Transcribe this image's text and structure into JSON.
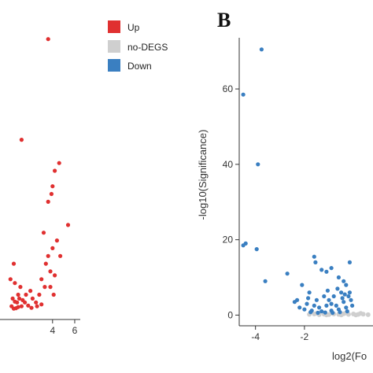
{
  "colors": {
    "up": "#e03030",
    "nodeg": "#cfcfcf",
    "down": "#3a7fc1",
    "axis": "#333333"
  },
  "legend": {
    "items": [
      {
        "label": "Up",
        "color": "#e03030"
      },
      {
        "label": "no-DEGS",
        "color": "#cfcfcf"
      },
      {
        "label": "Down",
        "color": "#3a7fc1"
      }
    ]
  },
  "panel_b": {
    "letter": "B"
  },
  "chart_data": [
    {
      "type": "scatter",
      "title": "",
      "xlabel": "",
      "ylabel": "",
      "xlim": [
        -0.6,
        6.5
      ],
      "ylim": [
        -2,
        74
      ],
      "xticks": [
        4,
        6
      ],
      "series": [
        {
          "name": "Up",
          "color": "#e03030",
          "points": [
            [
              3.6,
              70
            ],
            [
              1.2,
              44
            ],
            [
              4.6,
              38
            ],
            [
              4.2,
              36
            ],
            [
              4.0,
              32
            ],
            [
              3.9,
              30
            ],
            [
              3.6,
              28
            ],
            [
              5.4,
              22
            ],
            [
              3.2,
              20
            ],
            [
              4.4,
              18
            ],
            [
              4.0,
              16
            ],
            [
              3.6,
              14
            ],
            [
              4.7,
              14
            ],
            [
              3.4,
              12
            ],
            [
              3.8,
              10
            ],
            [
              4.2,
              9
            ],
            [
              0.5,
              12
            ],
            [
              3.0,
              8
            ],
            [
              3.3,
              6
            ],
            [
              3.8,
              6
            ],
            [
              4.1,
              4
            ],
            [
              2.8,
              4
            ],
            [
              1.1,
              6
            ],
            [
              0.9,
              4
            ],
            [
              0.8,
              2
            ],
            [
              1.5,
              2
            ],
            [
              2.2,
              3
            ],
            [
              2.5,
              2
            ],
            [
              3.0,
              1.5
            ],
            [
              1.2,
              1
            ],
            [
              0.3,
              1
            ],
            [
              0.7,
              0.5
            ],
            [
              0.4,
              3
            ],
            [
              0.6,
              7
            ],
            [
              2.0,
              5
            ],
            [
              2.6,
              1
            ],
            [
              0.2,
              8
            ],
            [
              1.8,
              1.2
            ],
            [
              1.0,
              3
            ],
            [
              1.6,
              4
            ],
            [
              0.9,
              0.8
            ],
            [
              0.5,
              0.4
            ],
            [
              1.3,
              2.6
            ],
            [
              2.1,
              0.6
            ],
            [
              0.6,
              2.2
            ]
          ]
        }
      ]
    },
    {
      "type": "scatter",
      "title": "",
      "xlabel": "log2(Fo",
      "ylabel": "-log10(Significance)",
      "xlim": [
        -4.6,
        0.8
      ],
      "ylim": [
        -2,
        74
      ],
      "xticks": [
        -4,
        -2
      ],
      "yticks": [
        0,
        20,
        40,
        60
      ],
      "series": [
        {
          "name": "Down",
          "color": "#3a7fc1",
          "points": [
            [
              -3.75,
              70.5
            ],
            [
              -4.5,
              58.5
            ],
            [
              -3.9,
              40
            ],
            [
              -4.4,
              19
            ],
            [
              -4.5,
              18.5
            ],
            [
              -3.95,
              17.5
            ],
            [
              -3.6,
              9
            ],
            [
              -2.7,
              11
            ],
            [
              -1.6,
              15.5
            ],
            [
              -1.55,
              14
            ],
            [
              -1.3,
              12
            ],
            [
              -1.1,
              11.5
            ],
            [
              -0.9,
              12.5
            ],
            [
              -0.6,
              10
            ],
            [
              -0.4,
              9
            ],
            [
              -0.3,
              8
            ],
            [
              -0.15,
              14
            ],
            [
              -2.1,
              8
            ],
            [
              -1.8,
              6
            ],
            [
              -2.3,
              4
            ],
            [
              -2.4,
              3.5
            ],
            [
              -1.5,
              4
            ],
            [
              -1.2,
              5
            ],
            [
              -1.0,
              4
            ],
            [
              -0.8,
              5
            ],
            [
              -0.5,
              6
            ],
            [
              -0.2,
              5
            ],
            [
              -1.9,
              3
            ],
            [
              -1.6,
              2.5
            ],
            [
              -1.4,
              2
            ],
            [
              -1.1,
              2.5
            ],
            [
              -0.9,
              3
            ],
            [
              -0.7,
              2.5
            ],
            [
              -0.4,
              3.5
            ],
            [
              -0.1,
              4
            ],
            [
              -2.0,
              1.5
            ],
            [
              -1.7,
              1.2
            ],
            [
              -1.3,
              1
            ],
            [
              -0.9,
              1.2
            ],
            [
              -0.6,
              1.5
            ],
            [
              -0.3,
              2
            ],
            [
              -0.05,
              2.5
            ],
            [
              -1.75,
              0.8
            ],
            [
              -1.45,
              0.6
            ],
            [
              -1.15,
              0.7
            ],
            [
              -0.85,
              0.6
            ],
            [
              -0.55,
              0.8
            ],
            [
              -0.25,
              1
            ],
            [
              -2.2,
              2
            ],
            [
              -0.35,
              5.5
            ],
            [
              -0.65,
              7
            ],
            [
              -1.05,
              6.5
            ],
            [
              -0.15,
              6
            ],
            [
              -0.45,
              4.5
            ],
            [
              -1.85,
              4.5
            ]
          ]
        },
        {
          "name": "no-DEGS",
          "color": "#cfcfcf",
          "points": [
            [
              -1.8,
              0.2
            ],
            [
              -1.6,
              0.3
            ],
            [
              -1.4,
              0.1
            ],
            [
              -1.2,
              0.25
            ],
            [
              -1.0,
              0.15
            ],
            [
              -0.8,
              0.3
            ],
            [
              -0.6,
              0.2
            ],
            [
              -0.4,
              0.35
            ],
            [
              -0.2,
              0.2
            ],
            [
              0.0,
              0.3
            ],
            [
              0.2,
              0.2
            ],
            [
              0.4,
              0.25
            ],
            [
              0.6,
              0.1
            ],
            [
              -1.5,
              0.45
            ],
            [
              -0.9,
              0.5
            ],
            [
              -0.3,
              0.55
            ],
            [
              0.3,
              0.45
            ],
            [
              -1.1,
              0.05
            ],
            [
              -0.5,
              0.05
            ],
            [
              0.1,
              0.05
            ]
          ]
        }
      ]
    }
  ]
}
